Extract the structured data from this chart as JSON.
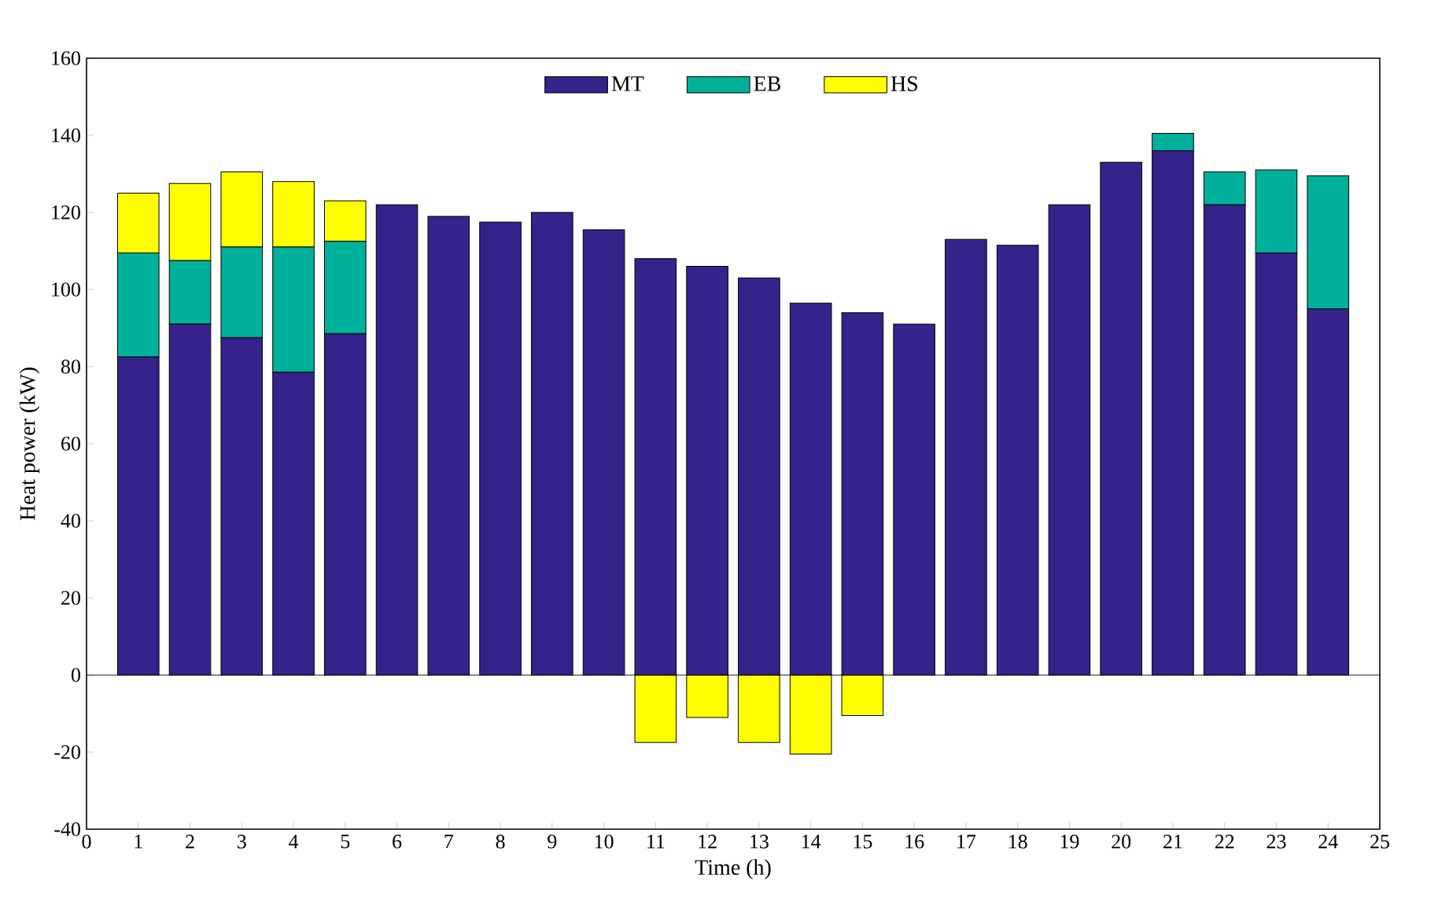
{
  "chart_data": {
    "type": "bar",
    "stacked": true,
    "xlabel": "Time (h)",
    "ylabel": "Heat power (kW)",
    "x": [
      1,
      2,
      3,
      4,
      5,
      6,
      7,
      8,
      9,
      10,
      11,
      12,
      13,
      14,
      15,
      16,
      17,
      18,
      19,
      20,
      21,
      22,
      23,
      24
    ],
    "series": [
      {
        "name": "MT",
        "color": "#35228a",
        "values": [
          82.5,
          91,
          87.5,
          78.5,
          88.5,
          122,
          119,
          117.5,
          120,
          115.5,
          108,
          106,
          103,
          96.5,
          94,
          91,
          113,
          111.5,
          122,
          133,
          136,
          122,
          109.5,
          95
        ]
      },
      {
        "name": "EB",
        "color": "#00b09a",
        "values": [
          27,
          16.5,
          23.5,
          32.5,
          24,
          0,
          0,
          0,
          0,
          0,
          0,
          0,
          0,
          0,
          0,
          0,
          0,
          0,
          0,
          0,
          4.5,
          8.5,
          21.5,
          34.5
        ]
      },
      {
        "name": "HS",
        "color": "#ffff00",
        "values": [
          15.5,
          20,
          19.5,
          17,
          10.5,
          0,
          0,
          0,
          0,
          0,
          -17.5,
          -11,
          -17.5,
          -20.5,
          -10.5,
          0,
          0,
          0,
          0,
          0,
          0,
          0,
          0,
          0
        ]
      }
    ],
    "xlim": [
      0,
      25
    ],
    "xticks": [
      0,
      1,
      2,
      3,
      4,
      5,
      6,
      7,
      8,
      9,
      10,
      11,
      12,
      13,
      14,
      15,
      16,
      17,
      18,
      19,
      20,
      21,
      22,
      23,
      24,
      25
    ],
    "ylim": [
      -40,
      160
    ],
    "yticks": [
      -40,
      -20,
      0,
      20,
      40,
      60,
      80,
      100,
      120,
      140,
      160
    ],
    "ref_lines": [
      {
        "axis": "y",
        "value": 0
      }
    ],
    "legend": "top",
    "grid": false
  }
}
